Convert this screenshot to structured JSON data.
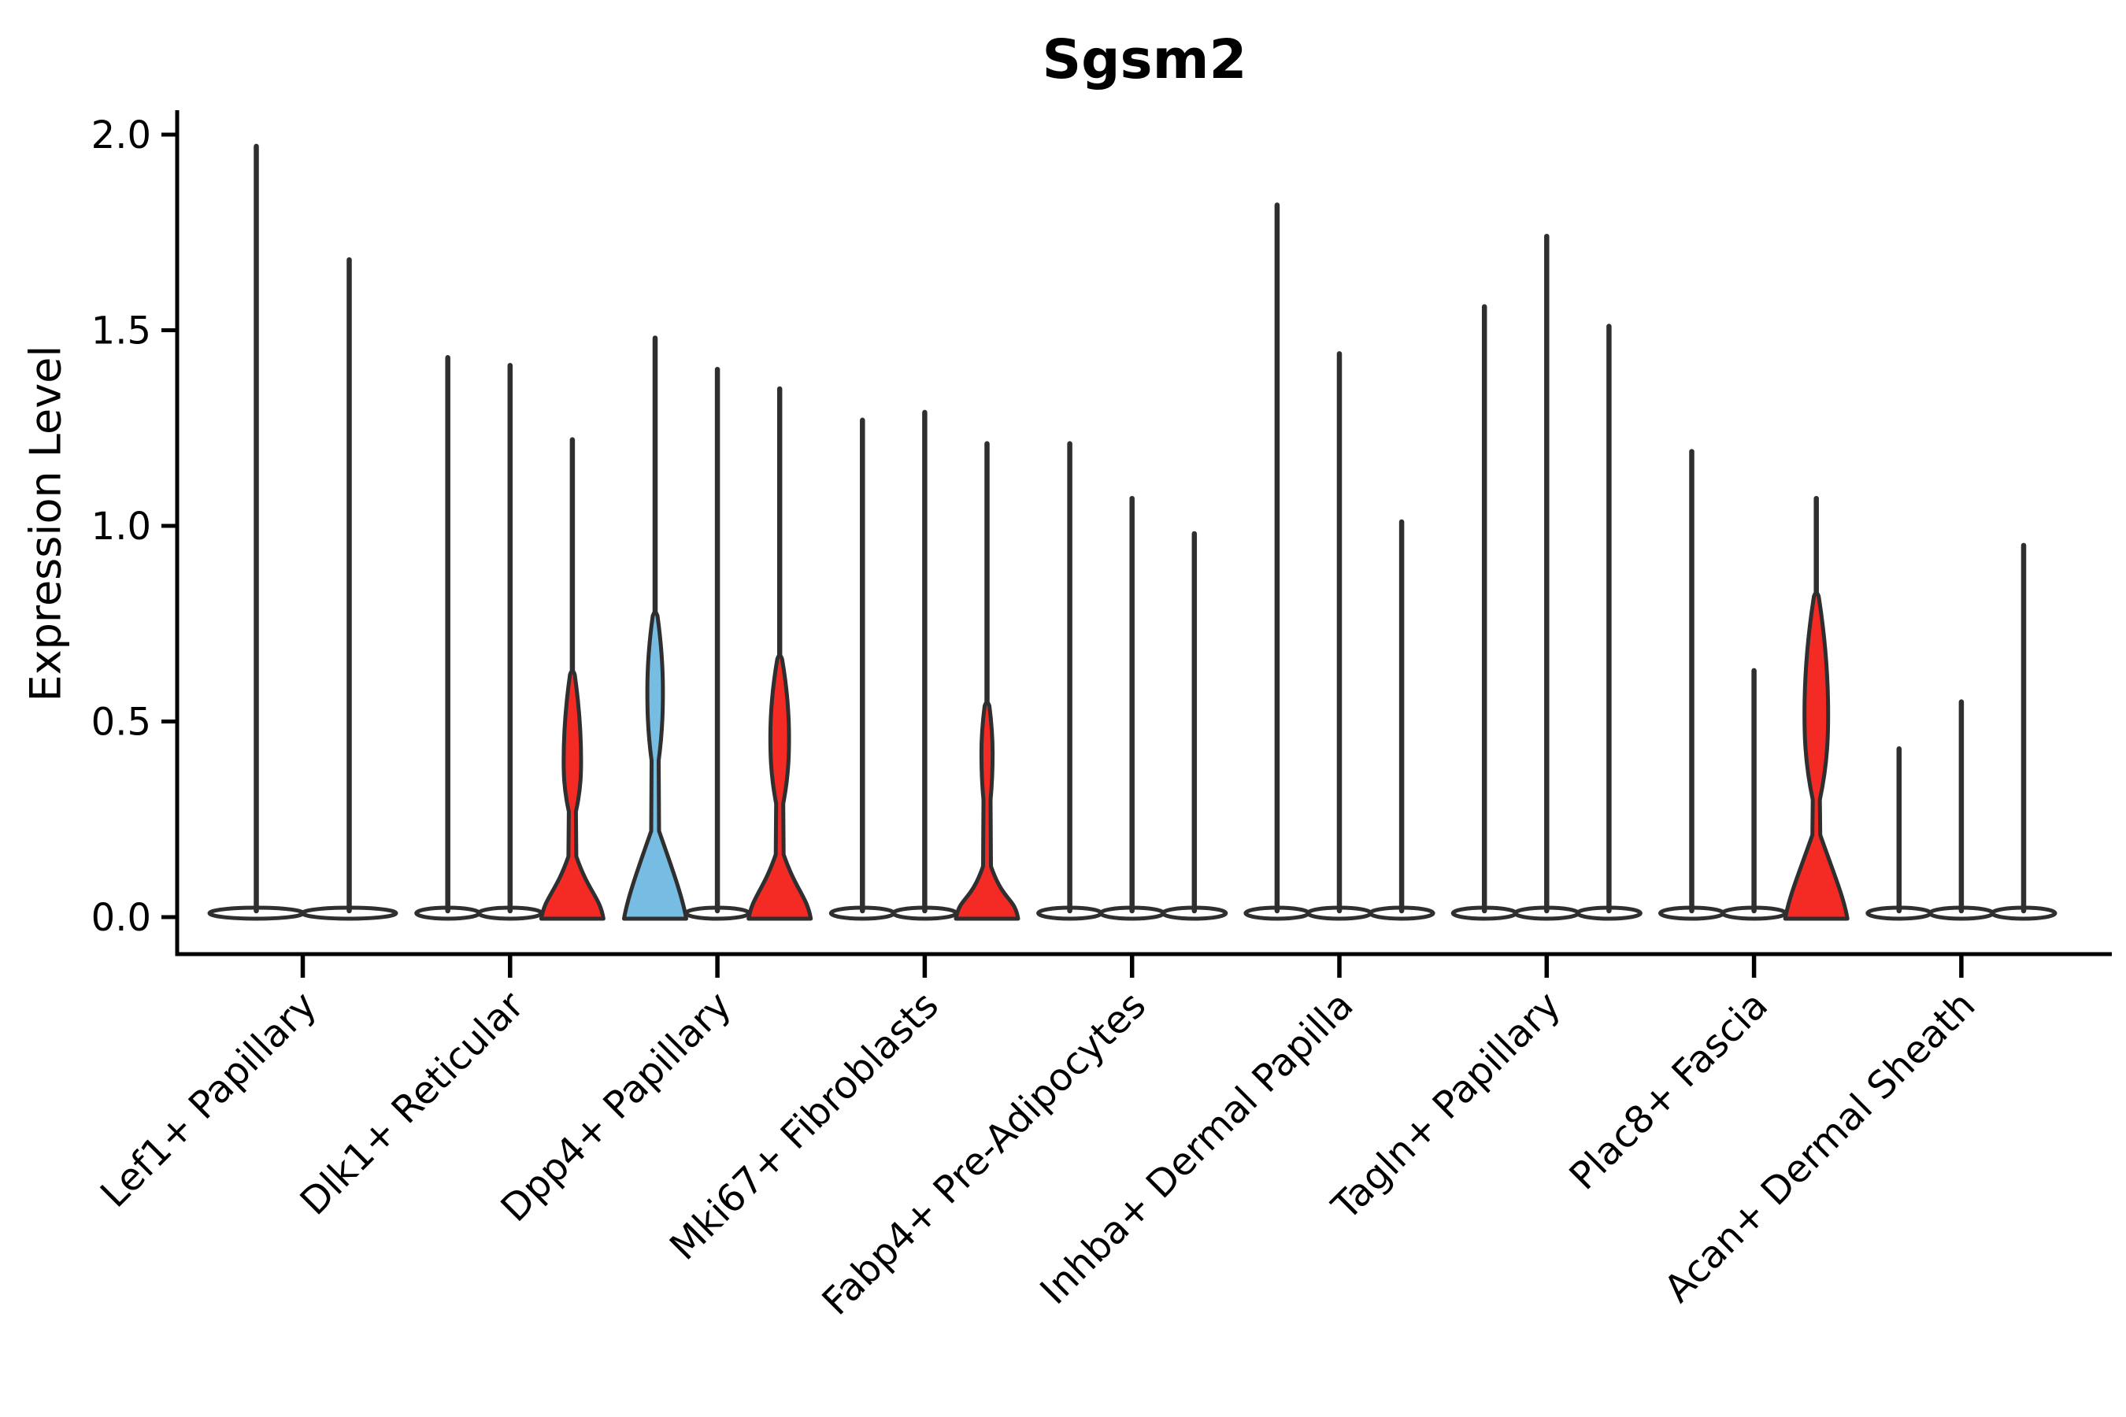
{
  "chart_data": {
    "type": "violin",
    "title": "Sgsm2",
    "ylabel": "Expression Level",
    "xlabel": "",
    "yticks": [
      {
        "label": "0.0",
        "value": 0.0
      },
      {
        "label": "0.5",
        "value": 0.5
      },
      {
        "label": "1.0",
        "value": 1.0
      },
      {
        "label": "1.5",
        "value": 1.5
      },
      {
        "label": "2.0",
        "value": 2.0
      }
    ],
    "ylim": [
      0,
      2.05
    ],
    "grid": false,
    "legend": "none",
    "colors": {
      "red_fill": "#F42A25",
      "blue_fill": "#77BCE3",
      "violin_outline": "#2F2F2F",
      "axis": "#000000",
      "background": "#FFFFFF"
    },
    "categories": [
      {
        "label": "Lef1+ Papillary",
        "violins": [
          {
            "max": 1.97,
            "fill": "none"
          },
          {
            "max": 1.68,
            "fill": "none"
          }
        ]
      },
      {
        "label": "Dlk1+ Reticular",
        "violins": [
          {
            "max": 1.43,
            "fill": "none"
          },
          {
            "max": 1.41,
            "fill": "none"
          },
          {
            "max": 1.22,
            "fill": "red",
            "neck": 0.155,
            "bulge": {
              "from": 0.27,
              "peak": 0.4,
              "to": 0.62,
              "width": 0.28
            }
          }
        ]
      },
      {
        "label": "Dpp4+ Papillary",
        "violins": [
          {
            "max": 1.48,
            "fill": "blue",
            "neck": 0.22,
            "bulge": {
              "from": 0.4,
              "peak": 0.58,
              "to": 0.77,
              "width": 0.25
            }
          },
          {
            "max": 1.4,
            "fill": "none"
          },
          {
            "max": 1.35,
            "fill": "red",
            "neck": 0.16,
            "bulge": {
              "from": 0.29,
              "peak": 0.46,
              "to": 0.66,
              "width": 0.3
            }
          }
        ]
      },
      {
        "label": "Mki67+ Fibroblasts",
        "violins": [
          {
            "max": 1.27,
            "fill": "none"
          },
          {
            "max": 1.29,
            "fill": "none"
          },
          {
            "max": 1.21,
            "fill": "red",
            "neck": 0.13,
            "bulge": {
              "from": 0.3,
              "peak": 0.42,
              "to": 0.54,
              "width": 0.18
            }
          }
        ]
      },
      {
        "label": "Fabp4+ Pre-Adipocytes",
        "violins": [
          {
            "max": 1.21,
            "fill": "none"
          },
          {
            "max": 1.07,
            "fill": "none"
          },
          {
            "max": 0.98,
            "fill": "none"
          }
        ]
      },
      {
        "label": "Inhba+ Dermal Papilla",
        "violins": [
          {
            "max": 1.82,
            "fill": "none"
          },
          {
            "max": 1.44,
            "fill": "none"
          },
          {
            "max": 1.01,
            "fill": "none"
          }
        ]
      },
      {
        "label": "Tagln+ Papillary",
        "violins": [
          {
            "max": 1.56,
            "fill": "none"
          },
          {
            "max": 1.74,
            "fill": "none"
          },
          {
            "max": 1.51,
            "fill": "none"
          }
        ]
      },
      {
        "label": "Plac8+ Fascia",
        "violins": [
          {
            "max": 1.19,
            "fill": "none"
          },
          {
            "max": 0.63,
            "fill": "none"
          },
          {
            "max": 1.07,
            "fill": "red",
            "neck": 0.21,
            "bulge": {
              "from": 0.3,
              "peak": 0.52,
              "to": 0.82,
              "width": 0.38
            }
          }
        ]
      },
      {
        "label": "Acan+ Dermal Sheath",
        "violins": [
          {
            "max": 0.43,
            "fill": "none"
          },
          {
            "max": 0.55,
            "fill": "none"
          },
          {
            "max": 0.95,
            "fill": "none"
          }
        ]
      }
    ]
  }
}
